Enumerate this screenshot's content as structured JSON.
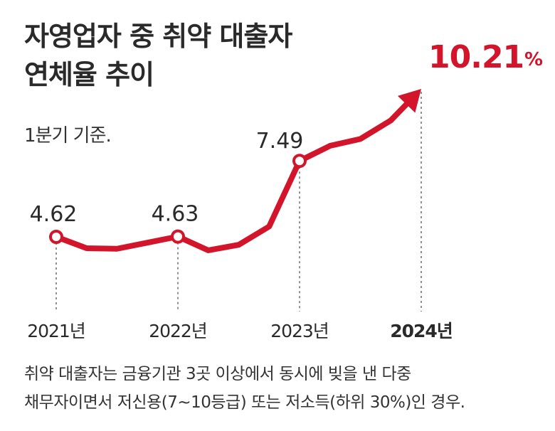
{
  "title_line1": "자영업자 중 취약 대출자",
  "title_line2": "연체율 추이",
  "subtitle": "1분기 기준.",
  "footnote_line1": "취약 대출자는 금융기관 3곳 이상에서 동시에 빚을 낸 다중",
  "footnote_line2": "채무자이면서 저신용(7~10등급) 또는 저소득(하위 30%)인 경우.",
  "accent_color": "#d3152b",
  "chart_data": {
    "type": "line",
    "title": "자영업자 중 취약 대출자 연체율 추이",
    "subtitle": "1분기 기준.",
    "unit": "%",
    "x_ticks": [
      "2021년",
      "2022년",
      "2023년",
      "2024년"
    ],
    "labeled_points": [
      {
        "x": "2021년",
        "value": 4.62,
        "label": "4.62"
      },
      {
        "x": "2022년",
        "value": 4.63,
        "label": "4.63"
      },
      {
        "x": "2023년",
        "value": 7.49,
        "label": "7.49"
      },
      {
        "x": "2024년",
        "value": 10.21,
        "label": "10.21",
        "unit": "%"
      }
    ],
    "series": [
      {
        "values": [
          4.62,
          4.19,
          4.17,
          4.4,
          4.63,
          4.11,
          4.32,
          5.01,
          7.49,
          8.06,
          8.32,
          9.02,
          10.21
        ]
      }
    ],
    "x_quarters": [
      0,
      1,
      2,
      3,
      4,
      5,
      6,
      7,
      8,
      9,
      10,
      11,
      12
    ],
    "color": "#d3152b"
  }
}
